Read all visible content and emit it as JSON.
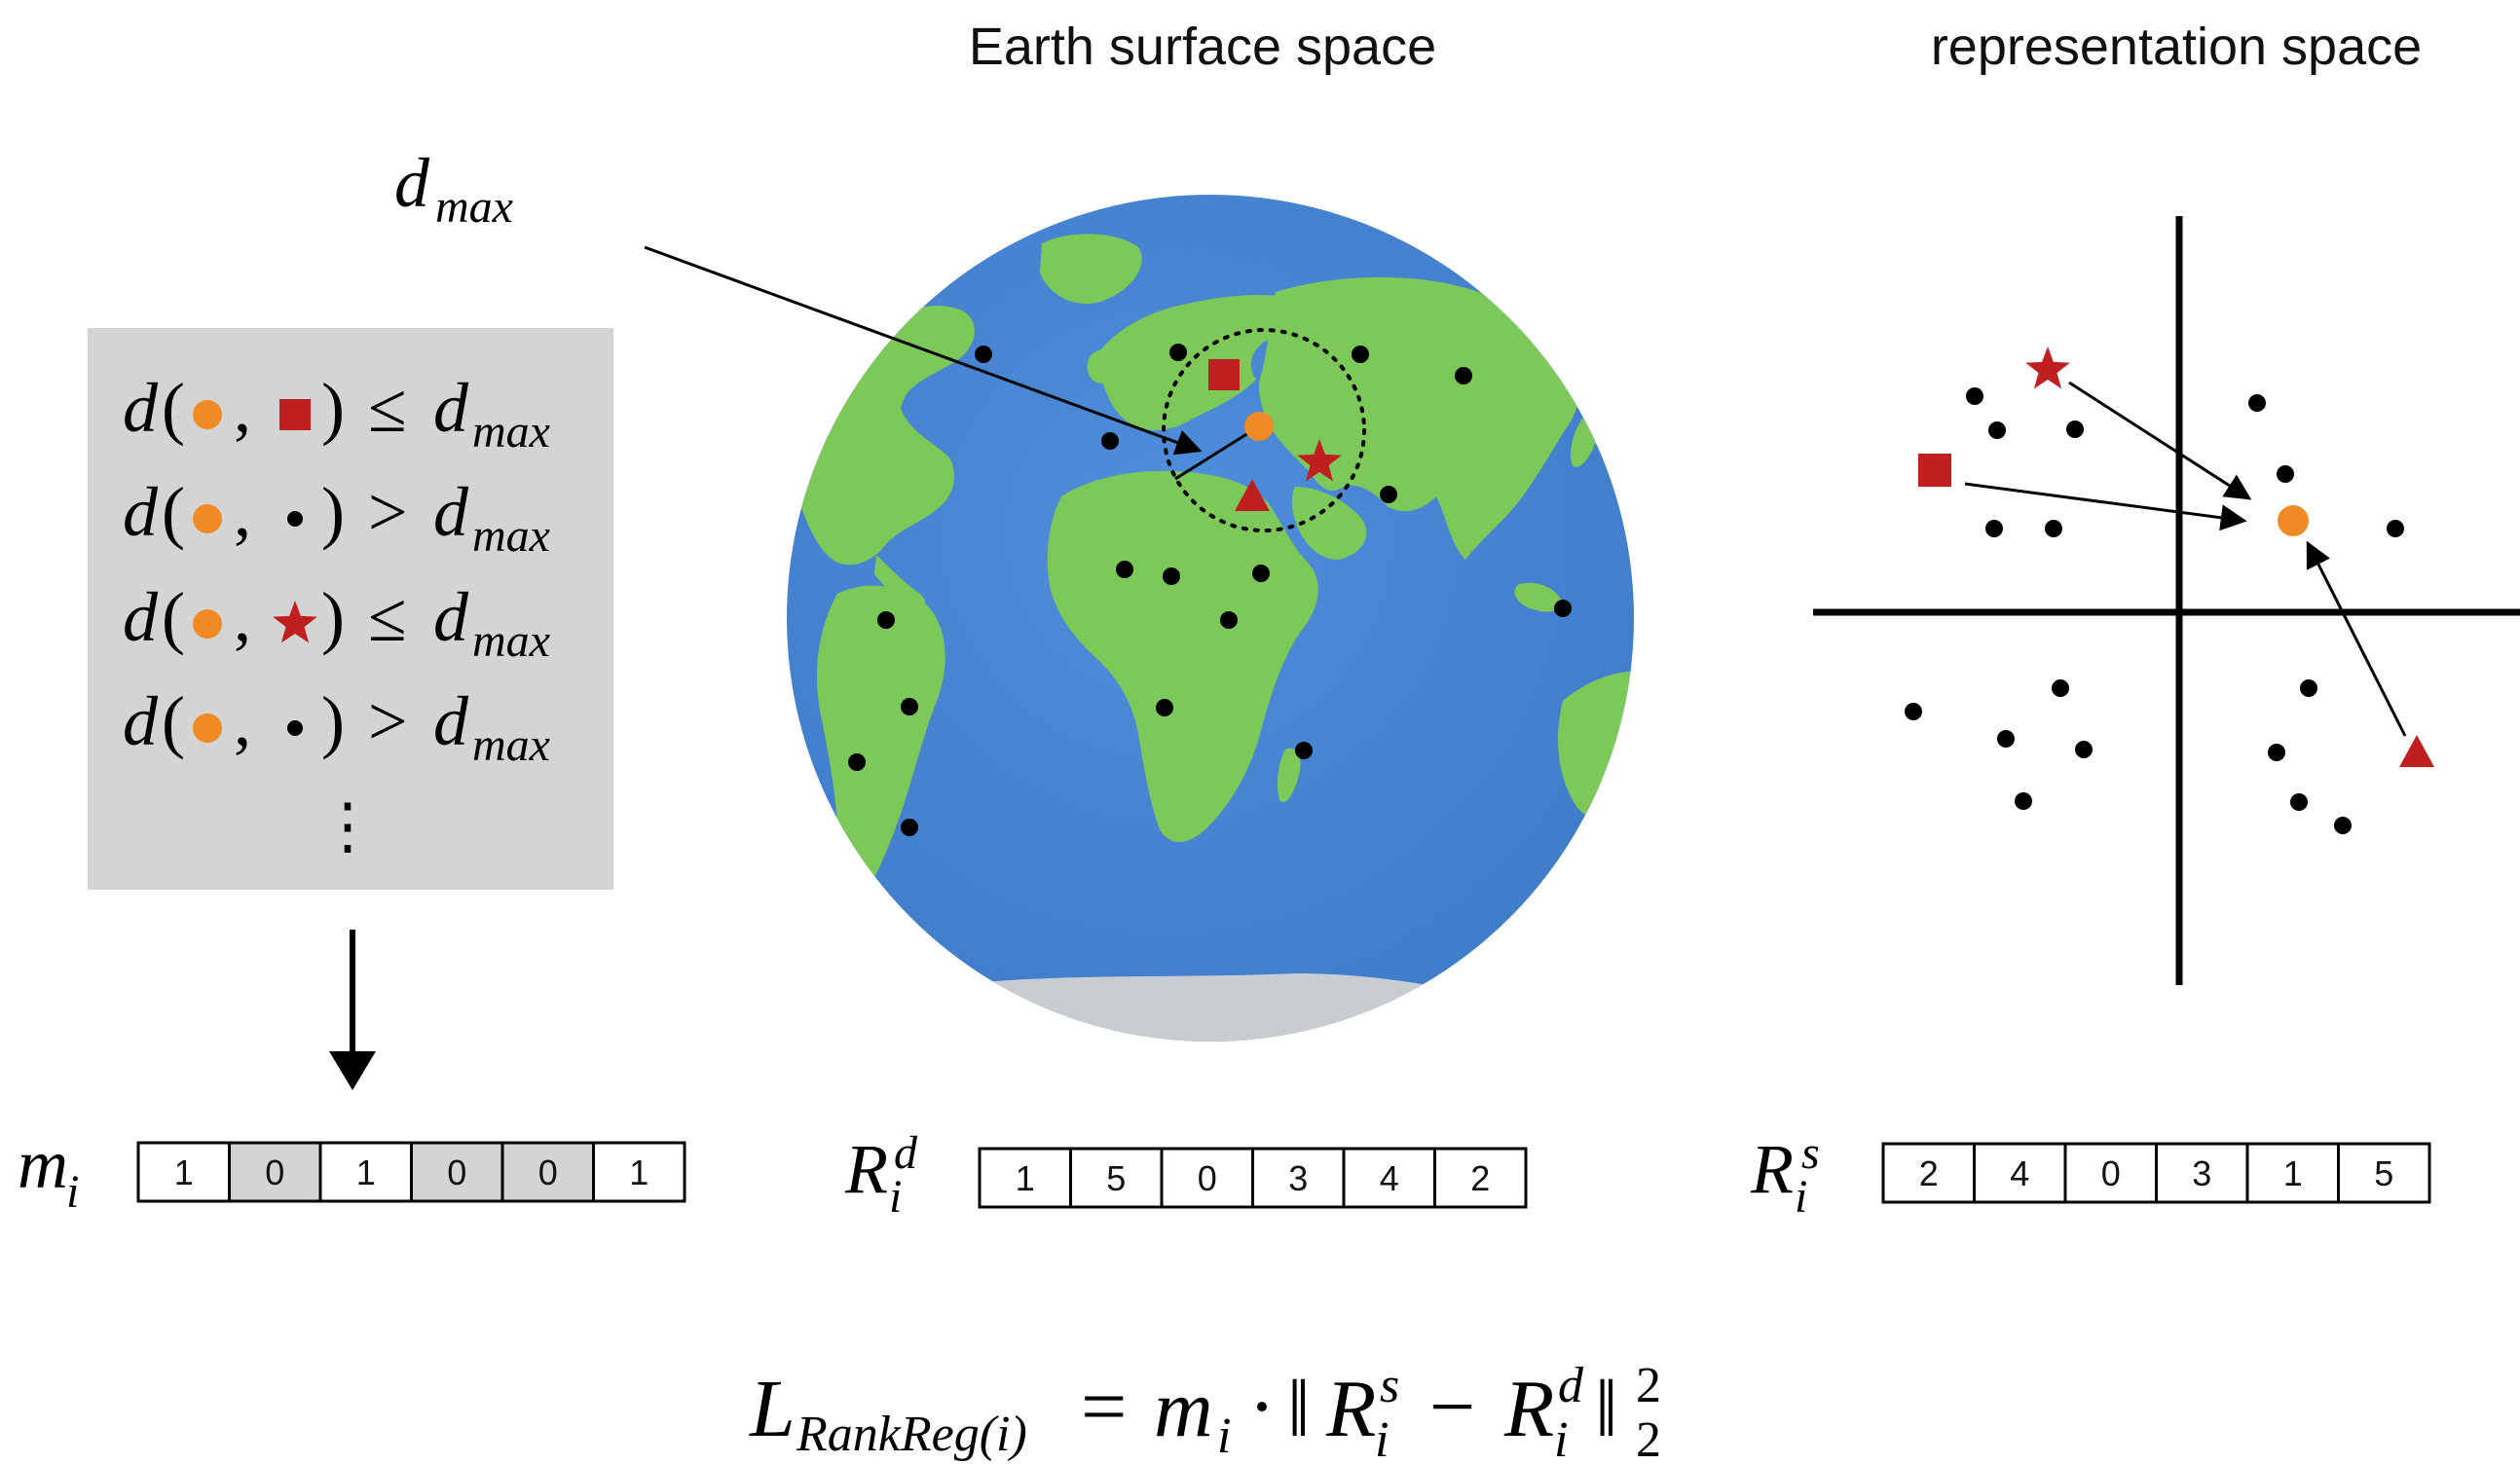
{
  "titles": {
    "earth": "Earth surface space",
    "representation": "representation space"
  },
  "labels": {
    "d": "d",
    "max": "max",
    "m": "m",
    "i": "i",
    "R": "R",
    "sup_d": "d",
    "sup_s": "s",
    "vdots": "⋮",
    "le": "≤",
    "gt": ">",
    "open_paren": "(",
    "close_paren": ")",
    "comma": ","
  },
  "conditions": [
    {
      "point": "square",
      "op": "le"
    },
    {
      "point": "dot",
      "op": "gt"
    },
    {
      "point": "star",
      "op": "le"
    },
    {
      "point": "dot",
      "op": "gt"
    }
  ],
  "mask_vector": {
    "values": [
      "1",
      "0",
      "1",
      "0",
      "0",
      "1"
    ],
    "shaded": [
      false,
      true,
      false,
      true,
      true,
      false
    ]
  },
  "rank_distance": {
    "values": [
      "1",
      "5",
      "0",
      "3",
      "4",
      "2"
    ]
  },
  "rank_representation": {
    "values": [
      "2",
      "4",
      "0",
      "3",
      "1",
      "5"
    ]
  },
  "formula": {
    "L": "L",
    "sub": "RankReg(i)",
    "eq": "=",
    "m": "m",
    "i": "i",
    "dot": "·",
    "norm": "‖",
    "R": "R",
    "s": "s",
    "d": "d",
    "minus": "−",
    "two": "2"
  },
  "colors": {
    "ocean": "#4a88d6",
    "land": "#7cc95a",
    "ice": "#c9ccd0",
    "orange": "#f08a24",
    "red": "#c01f1f",
    "panel": "#d4d4d4",
    "shaded_cell": "#d4d4d4",
    "ink": "#000000"
  },
  "icons": [
    "orange-circle-icon",
    "red-square-icon",
    "red-star-icon",
    "red-triangle-icon",
    "black-dot-icon",
    "globe-icon"
  ]
}
